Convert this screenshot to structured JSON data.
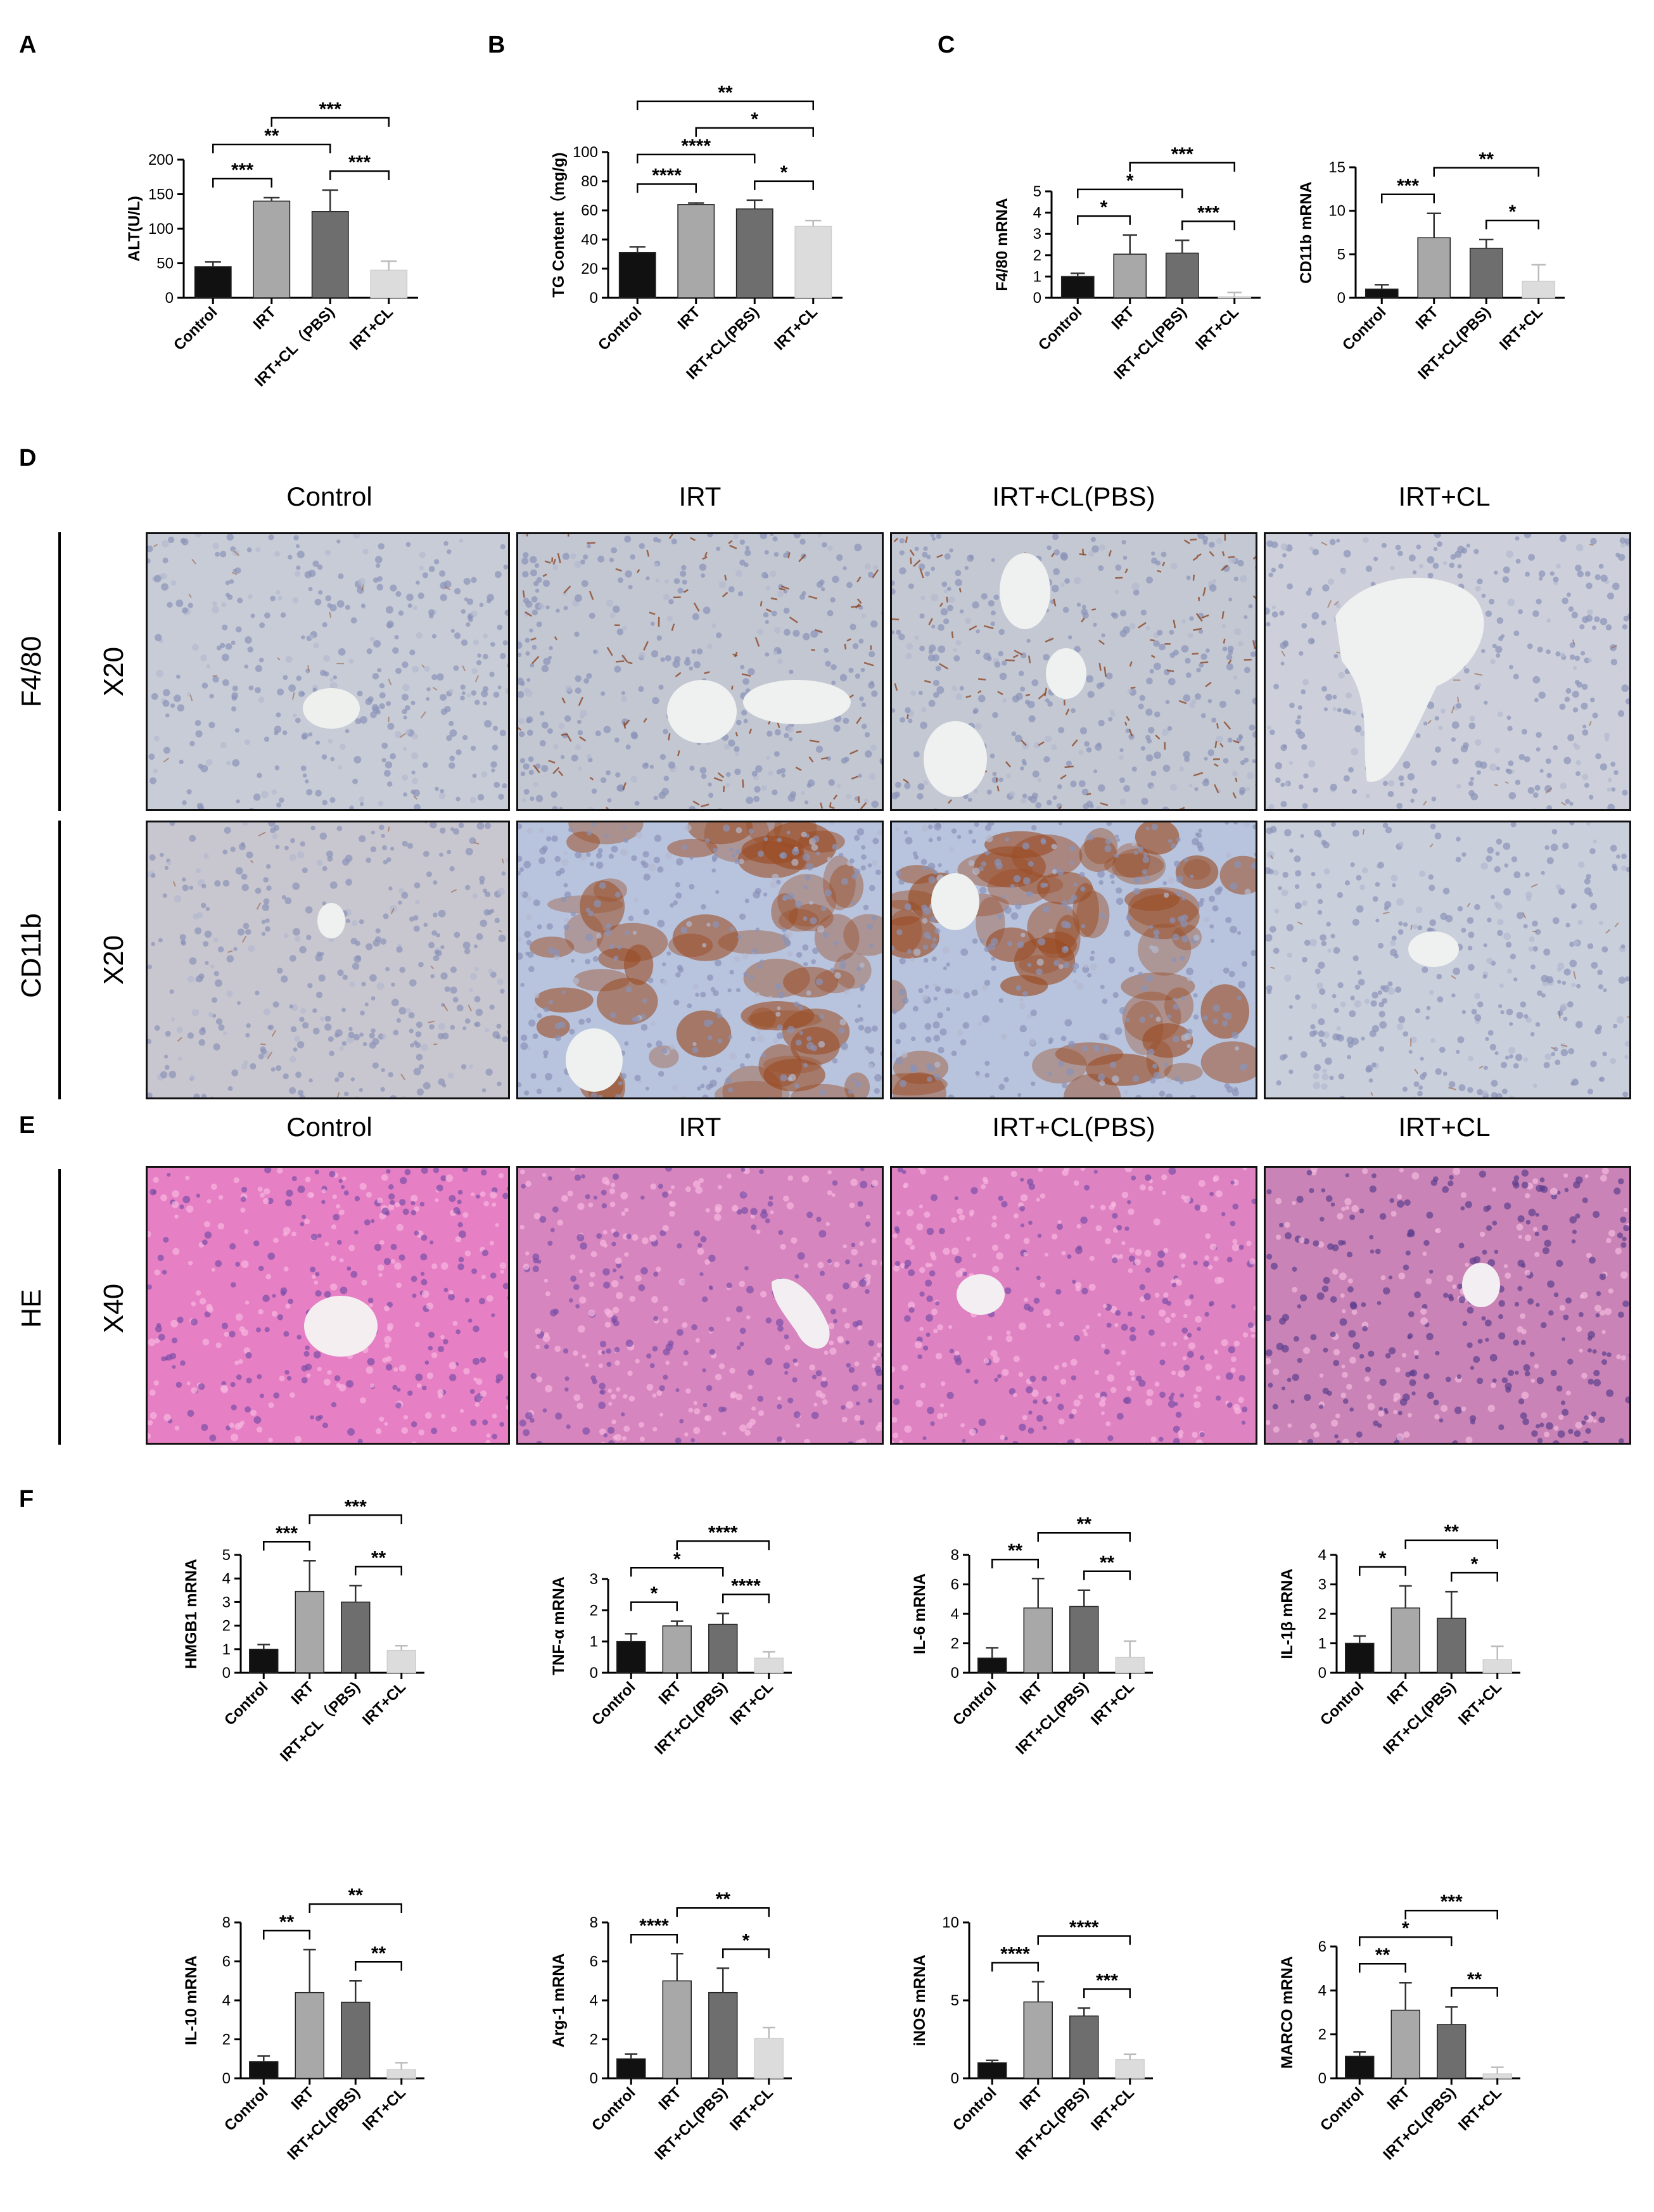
{
  "panel_labels": {
    "A": "A",
    "B": "B",
    "C": "C",
    "D": "D",
    "E": "E",
    "F": "F"
  },
  "groups": [
    "Control",
    "IRT",
    "IRT+CL(PBS)",
    "IRT+CL"
  ],
  "colors": {
    "control": "#111111",
    "irt": "#a8a8a8",
    "irtcl_pbs": "#6e6e6e",
    "irtcl": "#dcdcdc"
  },
  "histology": {
    "D": {
      "columns": [
        "Control",
        "IRT",
        "IRT+CL(PBS)",
        "IRT+CL"
      ],
      "rows": [
        {
          "stain": "F4/80",
          "magnification": "X20"
        },
        {
          "stain": "CD11b",
          "magnification": "X20"
        }
      ]
    },
    "E": {
      "columns": [
        "Control",
        "IRT",
        "IRT+CL(PBS)",
        "IRT+CL"
      ],
      "rows": [
        {
          "stain": "HE",
          "magnification": "X40"
        }
      ]
    }
  },
  "chart_data": [
    {
      "id": "A",
      "type": "bar",
      "categories": [
        "Control",
        "IRT",
        "IRT+CL（PBS)",
        "IRT+CL"
      ],
      "values": [
        45,
        140,
        125,
        40
      ],
      "errors": [
        7,
        5,
        31,
        13
      ],
      "ylabel": "ALT(U/L)",
      "ylim": [
        0,
        200
      ],
      "yticks": [
        "0",
        "50",
        "100",
        "150",
        "200"
      ],
      "sig": [
        {
          "a": 0,
          "b": 1,
          "label": "***"
        },
        {
          "a": 2,
          "b": 3,
          "label": "***"
        },
        {
          "a": 0,
          "b": 2,
          "label": "**"
        },
        {
          "a": 1,
          "b": 3,
          "label": "***"
        }
      ]
    },
    {
      "id": "B",
      "type": "bar",
      "categories": [
        "Control",
        "IRT",
        "IRT+CL(PBS)",
        "IRT+CL"
      ],
      "values": [
        31,
        64,
        61,
        49
      ],
      "errors": [
        4,
        1,
        6,
        4
      ],
      "ylabel": "TG Content（mg/g)",
      "ylim": [
        0,
        100
      ],
      "yticks": [
        "0",
        "20",
        "40",
        "60",
        "80",
        "100"
      ],
      "sig": [
        {
          "a": 0,
          "b": 1,
          "label": "****"
        },
        {
          "a": 2,
          "b": 3,
          "label": "*"
        },
        {
          "a": 0,
          "b": 2,
          "label": "****"
        },
        {
          "a": 1,
          "b": 3,
          "label": "*"
        },
        {
          "a": 0,
          "b": 3,
          "label": "**"
        }
      ]
    },
    {
      "id": "C1",
      "type": "bar",
      "categories": [
        "Control",
        "IRT",
        "IRT+CL(PBS)",
        "IRT+CL"
      ],
      "values": [
        1.0,
        2.05,
        2.1,
        0.05
      ],
      "errors": [
        0.15,
        0.9,
        0.6,
        0.2
      ],
      "ylabel": "F4/80 mRNA",
      "ylim": [
        0,
        5
      ],
      "yticks": [
        "0",
        "1",
        "2",
        "3",
        "4",
        "5"
      ],
      "sig": [
        {
          "a": 0,
          "b": 1,
          "label": "*"
        },
        {
          "a": 2,
          "b": 3,
          "label": "***"
        },
        {
          "a": 0,
          "b": 2,
          "label": "*"
        },
        {
          "a": 1,
          "b": 3,
          "label": "***"
        }
      ]
    },
    {
      "id": "C2",
      "type": "bar",
      "categories": [
        "Control",
        "IRT",
        "IRT+CL(PBS)",
        "IRT+CL"
      ],
      "values": [
        1.0,
        6.9,
        5.7,
        1.9
      ],
      "errors": [
        0.5,
        2.8,
        1.0,
        1.9
      ],
      "ylabel": "CD11b mRNA",
      "ylim": [
        0,
        15
      ],
      "yticks": [
        "0",
        "5",
        "10",
        "15"
      ],
      "sig": [
        {
          "a": 0,
          "b": 1,
          "label": "***"
        },
        {
          "a": 2,
          "b": 3,
          "label": "*"
        },
        {
          "a": 1,
          "b": 3,
          "label": "**"
        }
      ]
    },
    {
      "id": "F1",
      "type": "bar",
      "categories": [
        "Control",
        "IRT",
        "IRT+CL（PBS)",
        "IRT+CL"
      ],
      "values": [
        1.0,
        3.45,
        3.0,
        0.95
      ],
      "errors": [
        0.2,
        1.3,
        0.7,
        0.2
      ],
      "ylabel": "HMGB1 mRNA",
      "ylim": [
        0,
        5
      ],
      "yticks": [
        "0",
        "1",
        "2",
        "3",
        "4",
        "5"
      ],
      "sig": [
        {
          "a": 0,
          "b": 1,
          "label": "***"
        },
        {
          "a": 2,
          "b": 3,
          "label": "**"
        },
        {
          "a": 1,
          "b": 3,
          "label": "***"
        }
      ]
    },
    {
      "id": "F2",
      "type": "bar",
      "categories": [
        "Control",
        "IRT",
        "IRT+CL(PBS)",
        "IRT+CL"
      ],
      "values": [
        1.0,
        1.5,
        1.55,
        0.47
      ],
      "errors": [
        0.25,
        0.15,
        0.35,
        0.2
      ],
      "ylabel": "TNF-α mRNA",
      "ylim": [
        0,
        3
      ],
      "yticks": [
        "0",
        "1",
        "2",
        "3"
      ],
      "sig": [
        {
          "a": 0,
          "b": 1,
          "label": "*"
        },
        {
          "a": 2,
          "b": 3,
          "label": "****"
        },
        {
          "a": 0,
          "b": 2,
          "label": "*"
        },
        {
          "a": 1,
          "b": 3,
          "label": "****"
        }
      ]
    },
    {
      "id": "F3",
      "type": "bar",
      "categories": [
        "Control",
        "IRT",
        "IRT+CL(PBS)",
        "IRT+CL"
      ],
      "values": [
        1.0,
        4.4,
        4.5,
        1.05
      ],
      "errors": [
        0.7,
        2.0,
        1.1,
        1.1
      ],
      "ylabel": "IL-6 mRNA",
      "ylim": [
        0,
        8
      ],
      "yticks": [
        "0",
        "2",
        "4",
        "6",
        "8"
      ],
      "sig": [
        {
          "a": 0,
          "b": 1,
          "label": "**"
        },
        {
          "a": 2,
          "b": 3,
          "label": "**"
        },
        {
          "a": 1,
          "b": 3,
          "label": "**"
        }
      ]
    },
    {
      "id": "F4",
      "type": "bar",
      "categories": [
        "Control",
        "IRT",
        "IRT+CL(PBS)",
        "IRT+CL"
      ],
      "values": [
        1.0,
        2.2,
        1.85,
        0.45
      ],
      "errors": [
        0.25,
        0.75,
        0.9,
        0.45
      ],
      "ylabel": "IL-1β mRNA",
      "ylim": [
        0,
        4
      ],
      "yticks": [
        "0",
        "1",
        "2",
        "3",
        "4"
      ],
      "sig": [
        {
          "a": 0,
          "b": 1,
          "label": "*"
        },
        {
          "a": 2,
          "b": 3,
          "label": "*"
        },
        {
          "a": 1,
          "b": 3,
          "label": "**"
        }
      ]
    },
    {
      "id": "F5",
      "type": "bar",
      "categories": [
        "Control",
        "IRT",
        "IRT+CL(PBS)",
        "IRT+CL"
      ],
      "values": [
        0.85,
        4.4,
        3.9,
        0.45
      ],
      "errors": [
        0.3,
        2.2,
        1.1,
        0.35
      ],
      "ylabel": "IL-10 mRNA",
      "ylim": [
        0,
        8
      ],
      "yticks": [
        "0",
        "2",
        "4",
        "6",
        "8"
      ],
      "sig": [
        {
          "a": 0,
          "b": 1,
          "label": "**"
        },
        {
          "a": 2,
          "b": 3,
          "label": "**"
        },
        {
          "a": 1,
          "b": 3,
          "label": "**"
        }
      ]
    },
    {
      "id": "F6",
      "type": "bar",
      "categories": [
        "Control",
        "IRT",
        "IRT+CL(PBS)",
        "IRT+CL"
      ],
      "values": [
        1.0,
        5.0,
        4.4,
        2.05
      ],
      "errors": [
        0.25,
        1.4,
        1.25,
        0.55
      ],
      "ylabel": "Arg-1 mRNA",
      "ylim": [
        0,
        8
      ],
      "yticks": [
        "0",
        "2",
        "4",
        "6",
        "8"
      ],
      "sig": [
        {
          "a": 0,
          "b": 1,
          "label": "****"
        },
        {
          "a": 2,
          "b": 3,
          "label": "*"
        },
        {
          "a": 1,
          "b": 3,
          "label": "**"
        }
      ]
    },
    {
      "id": "F7",
      "type": "bar",
      "categories": [
        "Control",
        "IRT",
        "IRT+CL(PBS)",
        "IRT+CL"
      ],
      "values": [
        1.0,
        4.9,
        4.0,
        1.2
      ],
      "errors": [
        0.15,
        1.3,
        0.5,
        0.35
      ],
      "ylabel": "iNOS mRNA",
      "ylim": [
        0,
        10
      ],
      "yticks": [
        "0",
        "5",
        "10"
      ],
      "sig": [
        {
          "a": 0,
          "b": 1,
          "label": "****"
        },
        {
          "a": 2,
          "b": 3,
          "label": "***"
        },
        {
          "a": 1,
          "b": 3,
          "label": "****"
        }
      ]
    },
    {
      "id": "F8",
      "type": "bar",
      "categories": [
        "Control",
        "IRT",
        "IRT+CL(PBS)",
        "IRT+CL"
      ],
      "values": [
        1.0,
        3.1,
        2.45,
        0.2
      ],
      "errors": [
        0.2,
        1.25,
        0.8,
        0.3
      ],
      "ylabel": "MARCO mRNA",
      "ylim": [
        0,
        6
      ],
      "yticks": [
        "0",
        "2",
        "4",
        "6"
      ],
      "sig": [
        {
          "a": 0,
          "b": 1,
          "label": "**"
        },
        {
          "a": 2,
          "b": 3,
          "label": "**"
        },
        {
          "a": 0,
          "b": 2,
          "label": "*"
        },
        {
          "a": 1,
          "b": 3,
          "label": "***"
        }
      ]
    }
  ]
}
